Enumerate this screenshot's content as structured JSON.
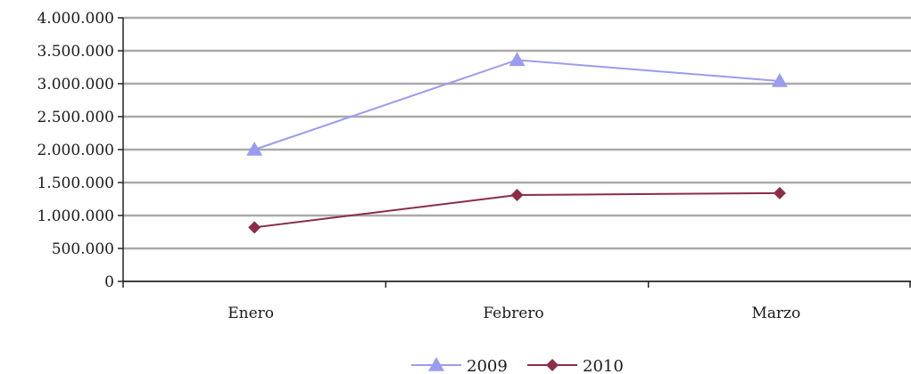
{
  "chart_data": {
    "type": "line",
    "title": "",
    "xlabel": "",
    "ylabel": "",
    "categories": [
      "Enero",
      "Febrero",
      "Marzo"
    ],
    "ylim": [
      0,
      4000000
    ],
    "y_ticks": [
      0,
      500000,
      1000000,
      1500000,
      2000000,
      2500000,
      3000000,
      3500000,
      4000000
    ],
    "y_tick_labels": [
      "0",
      "500.000",
      "1.000.000",
      "1.500.000",
      "2.000.000",
      "2.500.000",
      "3.000.000",
      "3.500.000",
      "4.000.000"
    ],
    "grid": true,
    "legend_position": "bottom",
    "series": [
      {
        "name": "2009",
        "values": [
          2000000,
          3360000,
          3040000
        ],
        "color": "#9b9bf0",
        "marker": "triangle"
      },
      {
        "name": "2010",
        "values": [
          820000,
          1310000,
          1340000
        ],
        "color": "#8b2d47",
        "marker": "diamond"
      }
    ]
  }
}
